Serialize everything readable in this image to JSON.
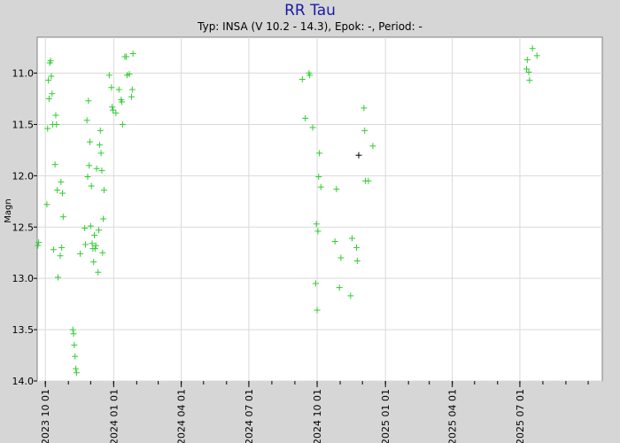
{
  "chart_data": {
    "type": "scatter",
    "title": "RR Tau",
    "subtitle": "Typ: INSA (V 10.2 - 14.3), Epok: -, Period: -",
    "xlabel": "",
    "ylabel": "Magn",
    "y_inverted": true,
    "ylim": [
      10.65,
      14.0
    ],
    "xlim": [
      "2023-09-20",
      "2025-10-20"
    ],
    "y_ticks": [
      "11.0",
      "11.5",
      "12.0",
      "12.5",
      "13.0",
      "13.5",
      "14.0"
    ],
    "x_ticks": [
      {
        "date": "2023-10-01",
        "label": "2023 10 01"
      },
      {
        "date": "2024-01-01",
        "label": "2024 01 01"
      },
      {
        "date": "2024-04-01",
        "label": "2024 04 01"
      },
      {
        "date": "2024-07-01",
        "label": "2024 07 01"
      },
      {
        "date": "2024-10-01",
        "label": "2024 10 01"
      },
      {
        "date": "2025-01-01",
        "label": "2025 01 01"
      },
      {
        "date": "2025-04-01",
        "label": "2025 04 01"
      },
      {
        "date": "2025-07-01",
        "label": "2025 07 01"
      }
    ],
    "grid": true,
    "colors": {
      "series": "#33cc33",
      "highlight": "#000000",
      "title": "#1a1aa6"
    },
    "series": [
      {
        "color": "#33cc33",
        "points": [
          [
            "2023-09-21",
            12.68
          ],
          [
            "2023-09-22",
            12.65
          ],
          [
            "2023-10-03",
            12.28
          ],
          [
            "2023-10-04",
            11.54
          ],
          [
            "2023-10-05",
            11.07
          ],
          [
            "2023-10-06",
            11.25
          ],
          [
            "2023-10-07",
            10.9
          ],
          [
            "2023-10-08",
            10.88
          ],
          [
            "2023-10-09",
            11.03
          ],
          [
            "2023-10-10",
            11.2
          ],
          [
            "2023-10-11",
            11.5
          ],
          [
            "2023-10-12",
            12.72
          ],
          [
            "2023-10-14",
            11.89
          ],
          [
            "2023-10-15",
            11.41
          ],
          [
            "2023-10-16",
            11.5
          ],
          [
            "2023-10-17",
            12.14
          ],
          [
            "2023-10-18",
            12.99
          ],
          [
            "2023-10-21",
            12.78
          ],
          [
            "2023-10-22",
            12.06
          ],
          [
            "2023-10-23",
            12.7
          ],
          [
            "2023-10-24",
            12.17
          ],
          [
            "2023-10-25",
            12.4
          ],
          [
            "2023-11-07",
            13.5
          ],
          [
            "2023-11-08",
            13.54
          ],
          [
            "2023-11-09",
            13.65
          ],
          [
            "2023-11-10",
            13.76
          ],
          [
            "2023-11-11",
            13.88
          ],
          [
            "2023-11-12",
            13.92
          ],
          [
            "2023-11-17",
            12.76
          ],
          [
            "2023-11-23",
            12.51
          ],
          [
            "2023-11-24",
            12.67
          ],
          [
            "2023-11-26",
            11.46
          ],
          [
            "2023-11-27",
            12.01
          ],
          [
            "2023-11-28",
            11.27
          ],
          [
            "2023-11-29",
            11.9
          ],
          [
            "2023-11-30",
            11.67
          ],
          [
            "2023-12-01",
            12.49
          ],
          [
            "2023-12-02",
            12.1
          ],
          [
            "2023-12-03",
            12.66
          ],
          [
            "2023-12-04",
            12.71
          ],
          [
            "2023-12-05",
            12.84
          ],
          [
            "2023-12-06",
            12.58
          ],
          [
            "2023-12-07",
            12.71
          ],
          [
            "2023-12-08",
            12.68
          ],
          [
            "2023-12-09",
            11.93
          ],
          [
            "2023-12-11",
            12.94
          ],
          [
            "2023-12-12",
            12.53
          ],
          [
            "2023-12-13",
            11.7
          ],
          [
            "2023-12-14",
            11.56
          ],
          [
            "2023-12-15",
            11.78
          ],
          [
            "2023-12-16",
            11.95
          ],
          [
            "2023-12-17",
            12.75
          ],
          [
            "2023-12-18",
            12.42
          ],
          [
            "2023-12-19",
            12.14
          ],
          [
            "2023-12-26",
            11.02
          ],
          [
            "2023-12-29",
            11.14
          ],
          [
            "2023-12-30",
            11.33
          ],
          [
            "2023-12-31",
            11.36
          ],
          [
            "2024-01-04",
            11.39
          ],
          [
            "2024-01-08",
            11.16
          ],
          [
            "2024-01-11",
            11.26
          ],
          [
            "2024-01-12",
            11.28
          ],
          [
            "2024-01-13",
            11.5
          ],
          [
            "2024-01-16",
            10.84
          ],
          [
            "2024-01-18",
            10.84
          ],
          [
            "2024-01-19",
            11.02
          ],
          [
            "2024-01-22",
            11.01
          ],
          [
            "2024-01-25",
            11.23
          ],
          [
            "2024-01-26",
            11.16
          ],
          [
            "2024-01-27",
            10.81
          ],
          [
            "2024-09-11",
            11.06
          ],
          [
            "2024-09-15",
            11.44
          ],
          [
            "2024-09-20",
            11.0
          ],
          [
            "2024-09-21",
            11.02
          ],
          [
            "2024-09-25",
            11.53
          ],
          [
            "2024-09-29",
            13.05
          ],
          [
            "2024-09-30",
            12.47
          ],
          [
            "2024-10-01",
            13.31
          ],
          [
            "2024-10-02",
            12.54
          ],
          [
            "2024-10-03",
            12.01
          ],
          [
            "2024-10-04",
            11.78
          ],
          [
            "2024-10-06",
            12.11
          ],
          [
            "2024-10-25",
            12.64
          ],
          [
            "2024-10-27",
            12.13
          ],
          [
            "2024-10-31",
            13.09
          ],
          [
            "2024-11-02",
            12.8
          ],
          [
            "2024-11-15",
            13.17
          ],
          [
            "2024-11-17",
            12.61
          ],
          [
            "2024-11-23",
            12.7
          ],
          [
            "2024-11-24",
            12.83
          ],
          [
            "2024-12-03",
            11.34
          ],
          [
            "2024-12-04",
            11.56
          ],
          [
            "2024-12-05",
            12.05
          ],
          [
            "2024-12-09",
            12.05
          ],
          [
            "2024-12-15",
            11.71
          ],
          [
            "2025-07-10",
            10.96
          ],
          [
            "2025-07-11",
            10.87
          ],
          [
            "2025-07-13",
            10.99
          ],
          [
            "2025-07-14",
            11.07
          ],
          [
            "2025-07-18",
            10.76
          ],
          [
            "2025-07-24",
            10.83
          ]
        ]
      },
      {
        "color": "#000000",
        "points": [
          [
            "2024-11-26",
            11.8
          ]
        ]
      }
    ]
  }
}
